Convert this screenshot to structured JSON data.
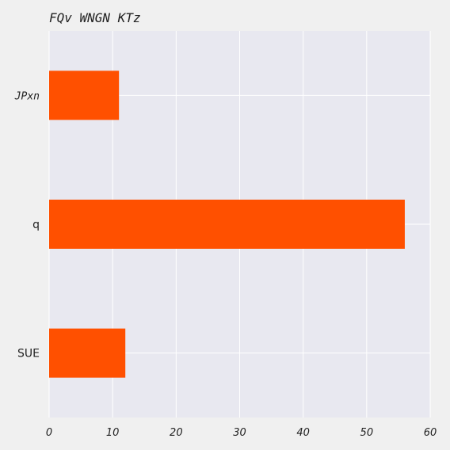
{
  "chart_data": {
    "type": "bar",
    "orientation": "horizontal",
    "title": "FQv WNGN KTz",
    "xlabel": "",
    "ylabel": "",
    "categories": [
      "JPxn",
      "q",
      "SUE"
    ],
    "values": [
      11,
      56,
      12
    ],
    "xlim": [
      0,
      60
    ],
    "xticks": [
      "0",
      "10",
      "20",
      "30",
      "40",
      "50",
      "60"
    ],
    "grid": true,
    "legend": "none",
    "colors": {
      "bar": "#ff5000",
      "plot_background": "#e8e8f0",
      "page_background": "#f0f0f0",
      "grid": "#ffffff"
    }
  }
}
